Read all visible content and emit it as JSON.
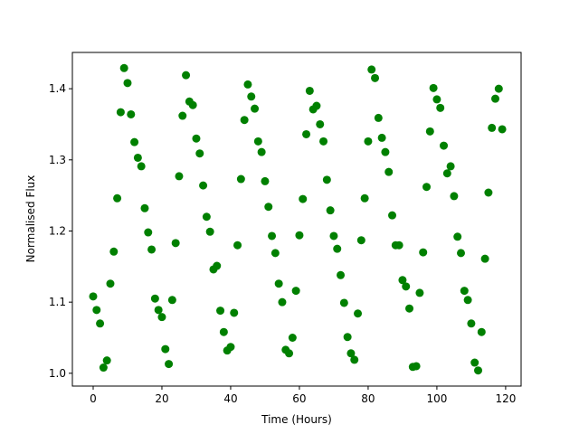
{
  "chart_data": {
    "type": "scatter",
    "xlabel": "Time (Hours)",
    "ylabel": "Normalised Flux",
    "color": "#008000",
    "grid": false,
    "xlim": [
      -6.05,
      124.5
    ],
    "ylim": [
      0.982,
      1.451
    ],
    "xticks": [
      0,
      20,
      40,
      60,
      80,
      100,
      120
    ],
    "yticks": [
      {
        "value": 1.0,
        "label": "1.0"
      },
      1.1,
      1.2,
      1.3,
      1.4
    ],
    "x": [
      0,
      1,
      2,
      3,
      4,
      5,
      6,
      7,
      8,
      9,
      10,
      11,
      12,
      13,
      14,
      15,
      16,
      17,
      18,
      19,
      20,
      21,
      22,
      23,
      24,
      25,
      26,
      27,
      28,
      29,
      30,
      31,
      32,
      33,
      34,
      35,
      36,
      37,
      38,
      39,
      40,
      41,
      42,
      43,
      44,
      45,
      46,
      47,
      48,
      49,
      50,
      51,
      52,
      53,
      54,
      55,
      56,
      57,
      58,
      59,
      60,
      61,
      62,
      63,
      64,
      65,
      66,
      67,
      68,
      69,
      70,
      71,
      72,
      73,
      74,
      75,
      76,
      77,
      78,
      79,
      80,
      81,
      82,
      83,
      84,
      85,
      86,
      87,
      88,
      89,
      90,
      91,
      92,
      93,
      94,
      95,
      96,
      97,
      98,
      99,
      100,
      101,
      102,
      103,
      104,
      105,
      106,
      107,
      108,
      109,
      110,
      111,
      112,
      113,
      114,
      115,
      116,
      117,
      118,
      119
    ],
    "values": [
      1.108,
      1.089,
      1.07,
      1.008,
      1.018,
      1.126,
      1.171,
      1.246,
      1.367,
      1.429,
      1.408,
      1.364,
      1.325,
      1.303,
      1.291,
      1.232,
      1.198,
      1.174,
      1.105,
      1.089,
      1.079,
      1.034,
      1.013,
      1.103,
      1.183,
      1.277,
      1.362,
      1.419,
      1.382,
      1.377,
      1.33,
      1.309,
      1.264,
      1.22,
      1.199,
      1.146,
      1.151,
      1.088,
      1.058,
      1.032,
      1.037,
      1.085,
      1.18,
      1.273,
      1.356,
      1.406,
      1.389,
      1.372,
      1.326,
      1.311,
      1.27,
      1.234,
      1.193,
      1.169,
      1.126,
      1.1,
      1.033,
      1.028,
      1.05,
      1.116,
      1.194,
      1.245,
      1.336,
      1.397,
      1.371,
      1.376,
      1.35,
      1.326,
      1.272,
      1.229,
      1.193,
      1.175,
      1.138,
      1.099,
      1.051,
      1.028,
      1.019,
      1.084,
      1.187,
      1.246,
      1.326,
      1.427,
      1.415,
      1.359,
      1.331,
      1.311,
      1.283,
      1.222,
      1.18,
      1.18,
      1.131,
      1.122,
      1.091,
      1.009,
      1.01,
      1.113,
      1.17,
      1.262,
      1.34,
      1.401,
      1.385,
      1.373,
      1.32,
      1.281,
      1.291,
      1.249,
      1.192,
      1.169,
      1.116,
      1.103,
      1.07,
      1.015,
      1.004,
      1.058,
      1.161,
      1.254,
      1.345,
      1.386,
      1.4,
      1.343
    ]
  }
}
